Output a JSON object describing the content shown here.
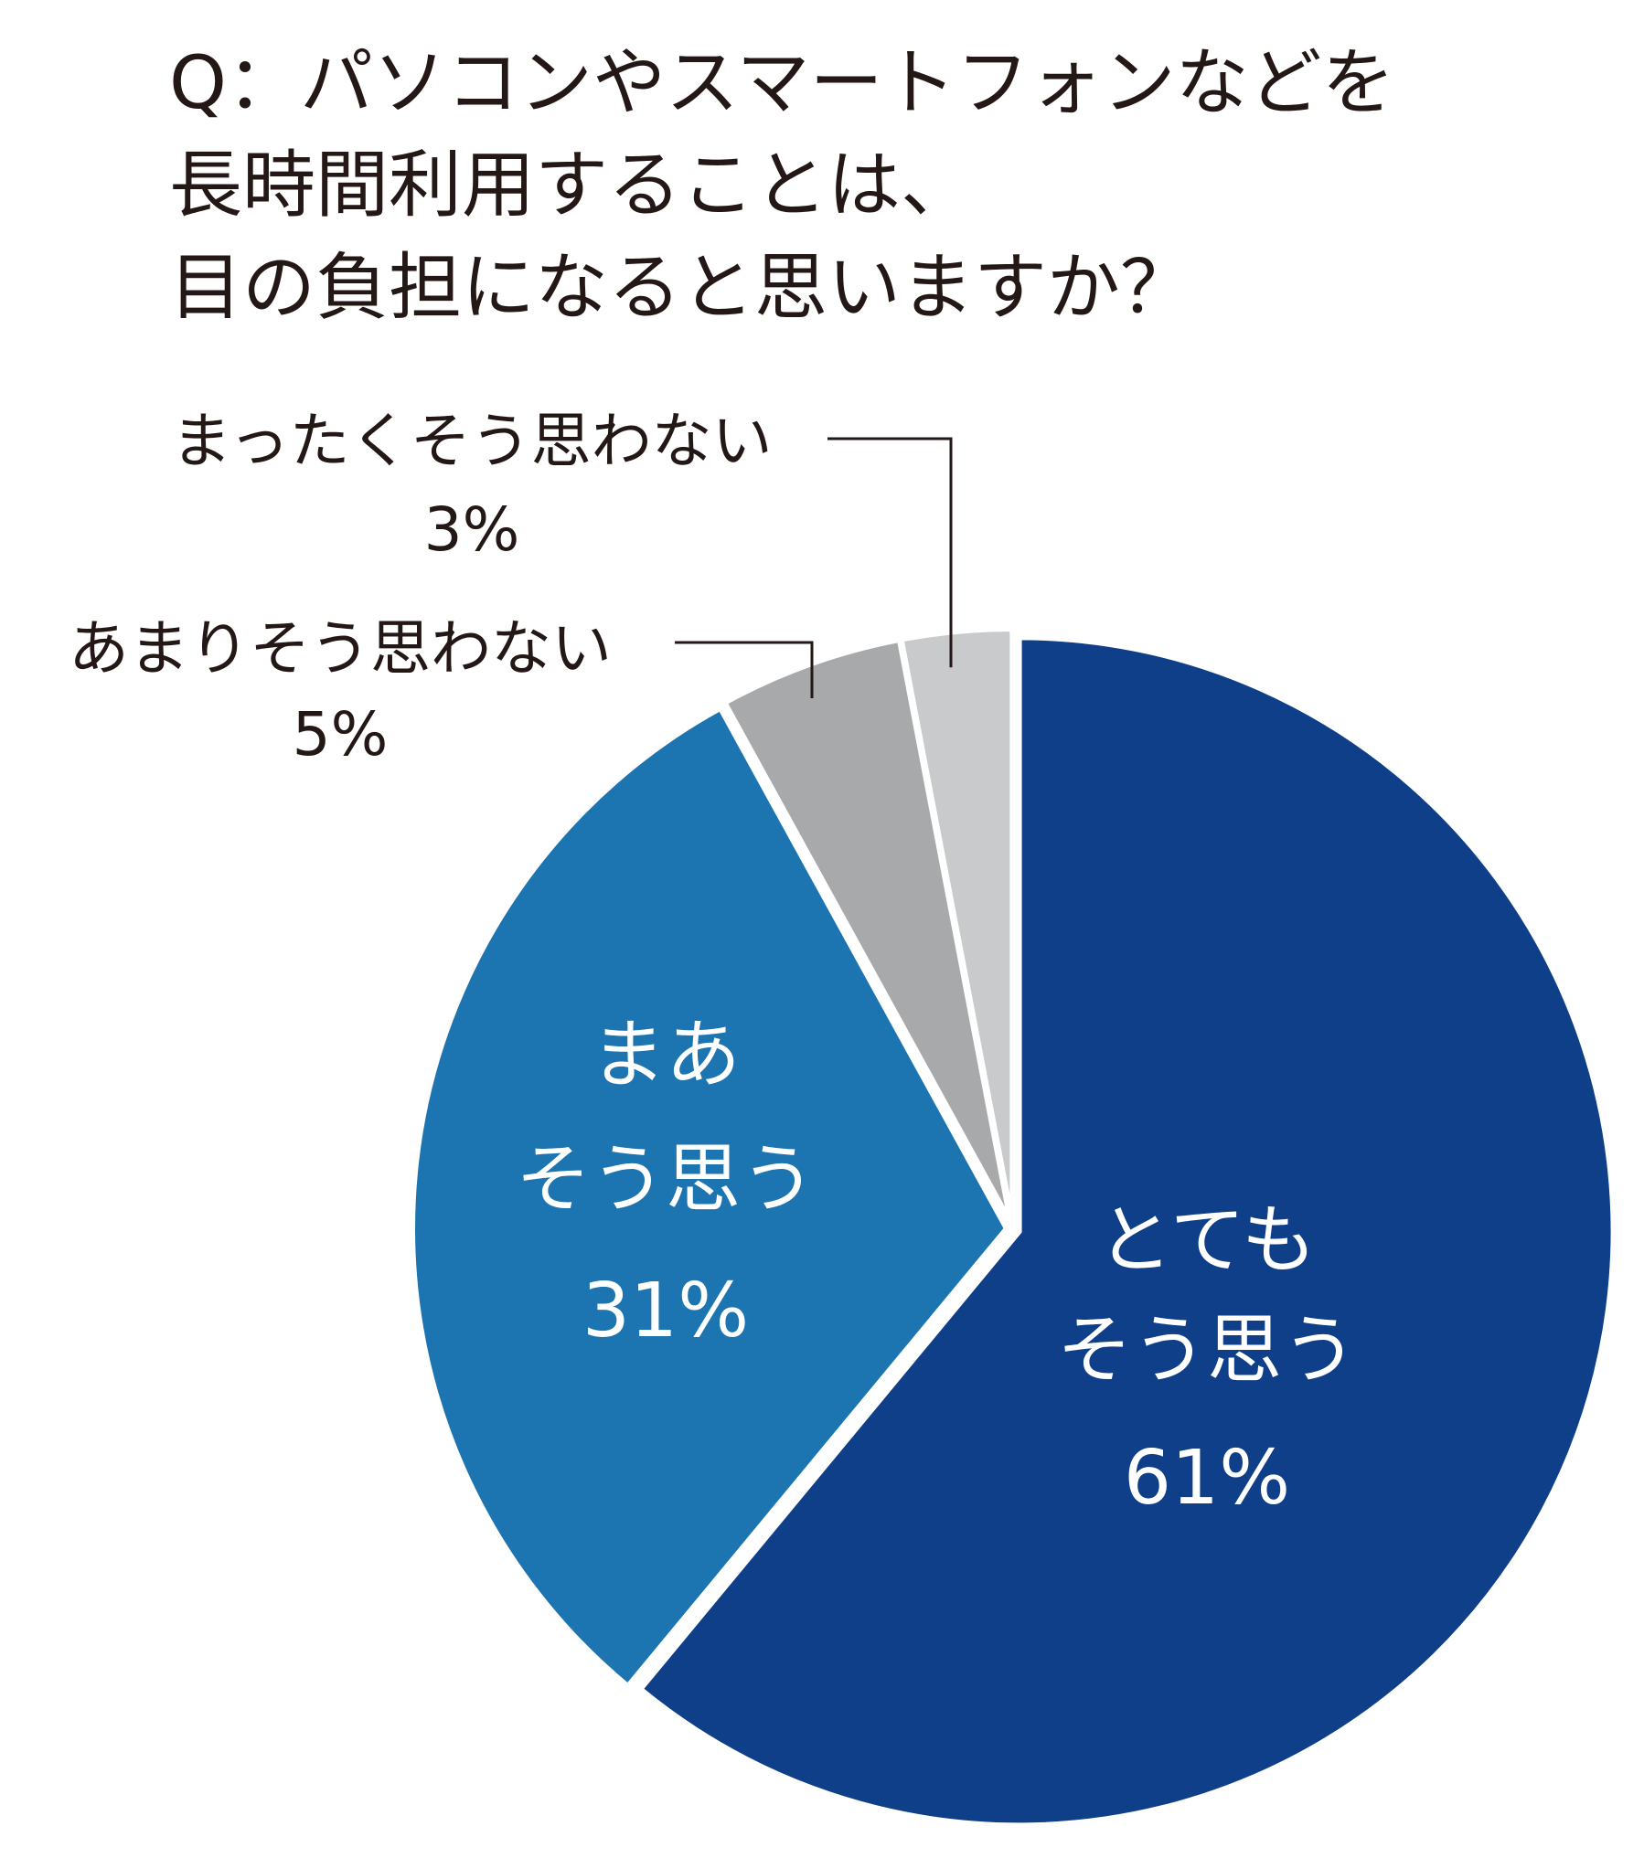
{
  "chart_data": {
    "type": "pie",
    "title_lines": [
      "Q：パソコンやスマートフォンなどを",
      "長時間利用することは、",
      "目の負担になると思いますか？"
    ],
    "slices": [
      {
        "label_lines": [
          "とても",
          "そう思う"
        ],
        "value": 61,
        "value_text": "61%",
        "color": "#0e3f88"
      },
      {
        "label_lines": [
          "まあ",
          "そう思う"
        ],
        "value": 31,
        "value_text": "31%",
        "color": "#1c75b0"
      },
      {
        "label_lines": [
          "あまりそう思わない"
        ],
        "value": 5,
        "value_text": "5%",
        "color": "#a8a9ab"
      },
      {
        "label_lines": [
          "まったくそう思わない"
        ],
        "value": 3,
        "value_text": "3%",
        "color": "#c9cacb"
      }
    ],
    "start_angle_deg": 0,
    "direction": "clockwise"
  }
}
